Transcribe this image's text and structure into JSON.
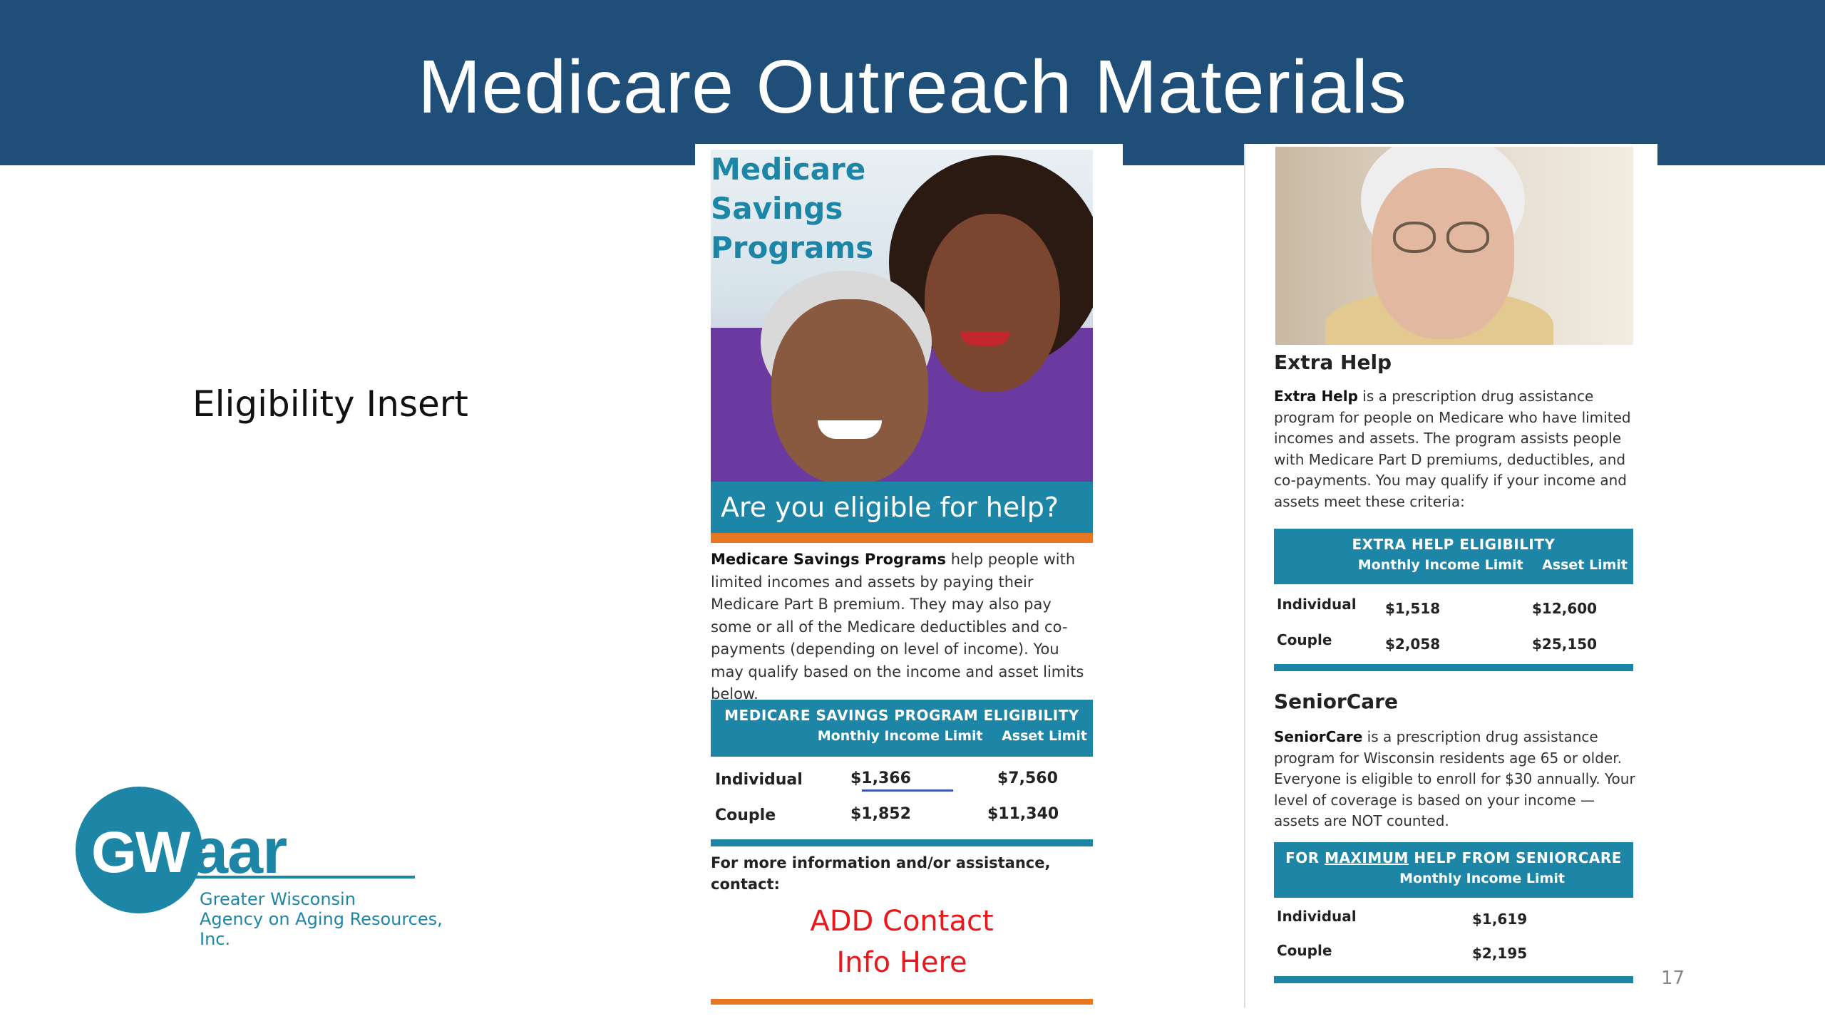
{
  "slide": {
    "title": "Medicare Outreach Materials",
    "side_label": "Eligibility Insert",
    "page_number": "17"
  },
  "logo": {
    "mark_left": "GW",
    "mark_right": "aar",
    "subtitle_line1": "Greater Wisconsin",
    "subtitle_line2": "Agency on Aging Resources, Inc."
  },
  "brochure_msp": {
    "title": "Medicare Savings Programs",
    "banner": "Are you eligible for help?",
    "intro_bold": "Medicare Savings Programs",
    "intro_rest": "help people with limited incomes and assets by paying their Medicare Part B premium. They may also pay some or all of the Medicare deductibles and co-payments (depending on level of income). You may qualify based on the income and asset limits below.",
    "table": {
      "heading": "MEDICARE SAVINGS PROGRAM ELIGIBILITY",
      "columns": [
        "Monthly Income Limit",
        "Asset Limit"
      ],
      "rows": [
        {
          "label": "Individual",
          "income": "$1,366",
          "asset": "$7,560"
        },
        {
          "label": "Couple",
          "income": "$1,852",
          "asset": "$11,340"
        }
      ]
    },
    "info_text": "For more information and/or assistance, contact:",
    "contact_line1": "ADD Contact",
    "contact_line2": "Info Here"
  },
  "brochure_extra": {
    "extra_help": {
      "heading": "Extra Help",
      "body_bold": "Extra Help",
      "body_rest": "is a prescription drug assistance program for people on Medicare who have limited incomes and assets. The program assists people with Medicare Part D premiums, deductibles, and co-payments. You may qualify if your income and assets meet these criteria:",
      "table": {
        "heading": "EXTRA HELP ELIGIBILITY",
        "columns": [
          "Monthly Income Limit",
          "Asset Limit"
        ],
        "rows": [
          {
            "label": "Individual",
            "income": "$1,518",
            "asset": "$12,600"
          },
          {
            "label": "Couple",
            "income": "$2,058",
            "asset": "$25,150"
          }
        ]
      }
    },
    "seniorcare": {
      "heading": "SeniorCare",
      "body_bold": "SeniorCare",
      "body_rest": "is a prescription drug assistance program for Wisconsin residents age 65 or older. Everyone is eligible to enroll for $30 annually. Your level of coverage is based on your income — assets are NOT counted.",
      "table": {
        "heading_pre": "FOR",
        "heading_underlined": "MAXIMUM",
        "heading_post": "HELP FROM SENIORCARE",
        "columns": [
          "Monthly Income Limit"
        ],
        "rows": [
          {
            "label": "Individual",
            "income": "$1,619"
          },
          {
            "label": "Couple",
            "income": "$2,195"
          }
        ]
      }
    }
  },
  "colors": {
    "header": "#1f4e79",
    "accent_teal": "#1d86a6",
    "accent_orange": "#e87722",
    "contact_red": "#e8191c"
  }
}
